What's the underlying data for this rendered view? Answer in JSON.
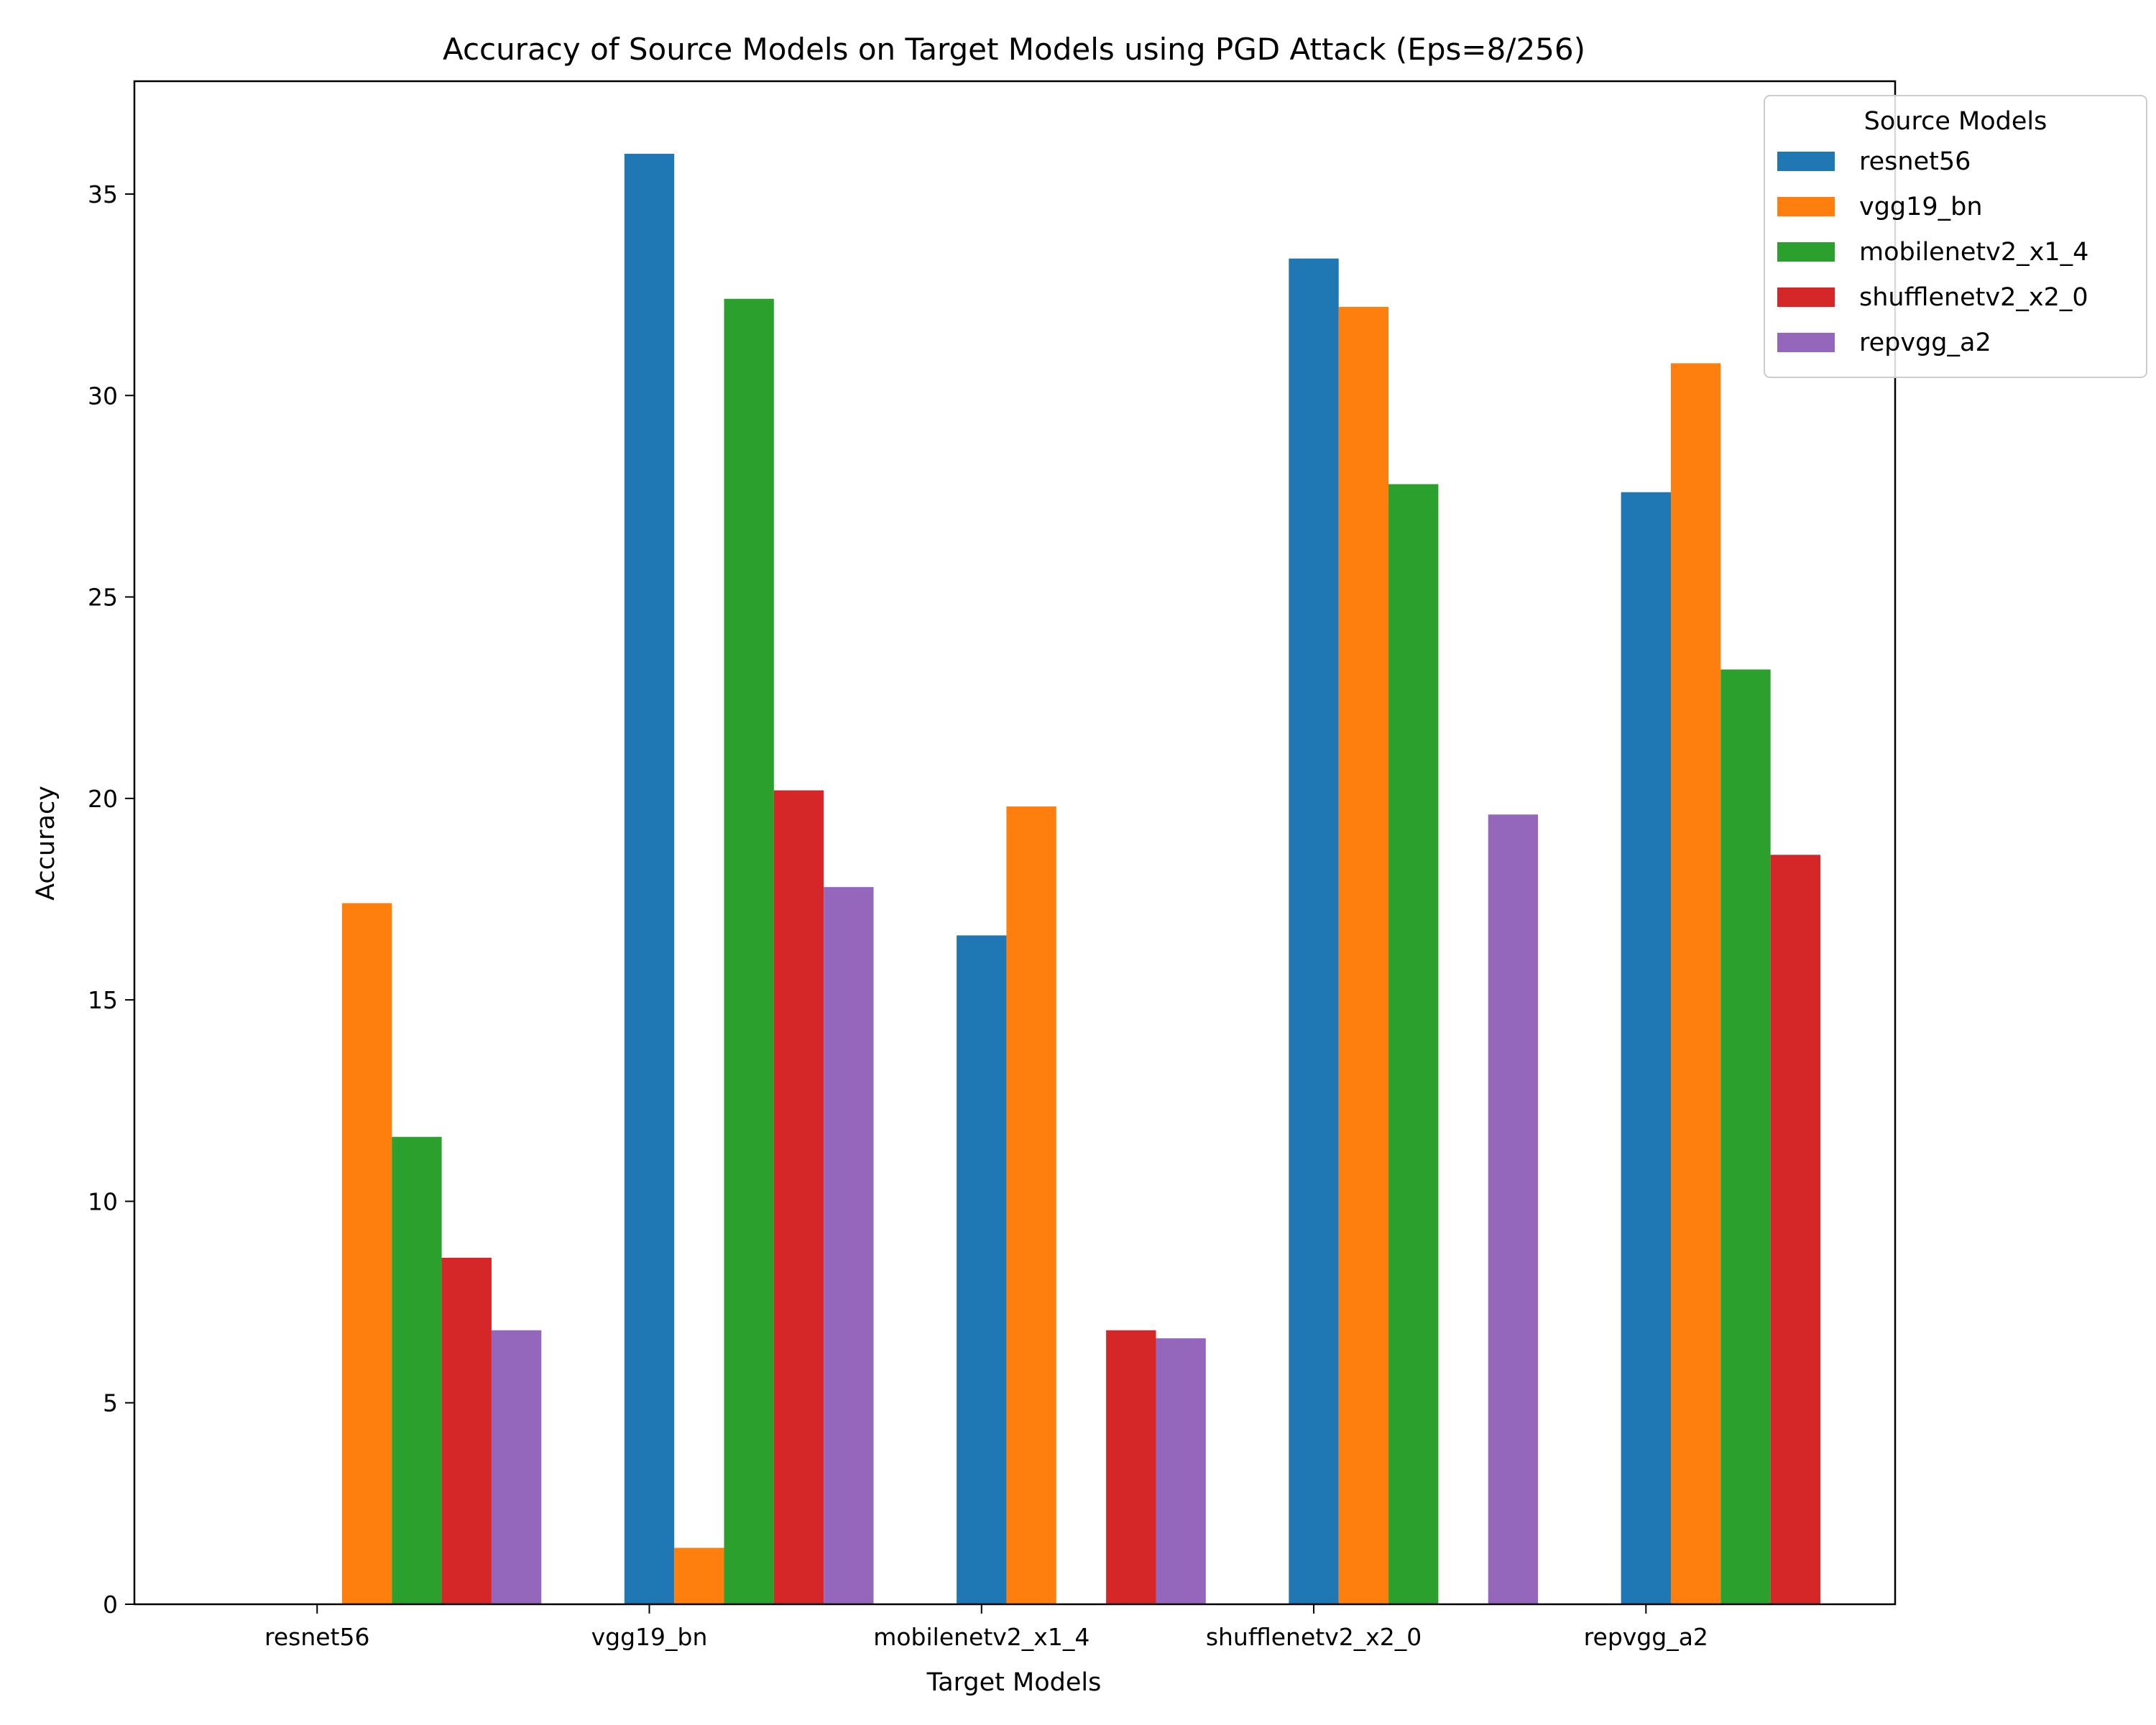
{
  "chart_data": {
    "type": "bar",
    "title": "Accuracy of Source Models on Target Models using PGD Attack (Eps=8/256)",
    "xlabel": "Target Models",
    "ylabel": "Accuracy",
    "ylim": [
      0,
      37.8
    ],
    "yticks": [
      0,
      5,
      10,
      15,
      20,
      25,
      30,
      35
    ],
    "grid": false,
    "legend_title": "Source Models",
    "legend_position": "top-right",
    "categories": [
      "resnet56",
      "vgg19_bn",
      "mobilenetv2_x1_4",
      "shufflenetv2_x2_0",
      "repvgg_a2"
    ],
    "series": [
      {
        "name": "resnet56",
        "color": "#1f77b4",
        "values": [
          0,
          36.0,
          16.6,
          33.4,
          27.6
        ]
      },
      {
        "name": "vgg19_bn",
        "color": "#ff7f0e",
        "values": [
          17.4,
          1.4,
          19.8,
          32.2,
          30.8
        ]
      },
      {
        "name": "mobilenetv2_x1_4",
        "color": "#2ca02c",
        "values": [
          11.6,
          32.4,
          0,
          27.8,
          23.2
        ]
      },
      {
        "name": "shufflenetv2_x2_0",
        "color": "#d62728",
        "values": [
          8.6,
          20.2,
          6.8,
          0,
          18.6
        ]
      },
      {
        "name": "repvgg_a2",
        "color": "#9467bd",
        "values": [
          6.8,
          17.8,
          6.6,
          19.6,
          0
        ]
      }
    ]
  }
}
